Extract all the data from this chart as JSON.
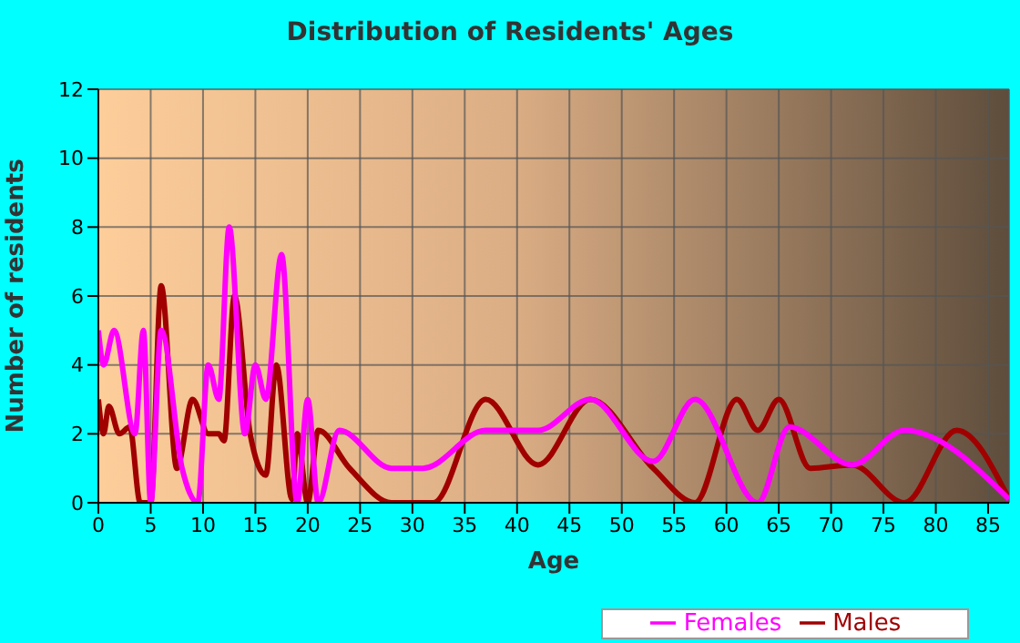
{
  "chart_data": {
    "type": "line",
    "title": "Distribution of Residents' Ages",
    "xlabel": "Age",
    "ylabel": "Number of residents",
    "xlim": [
      0,
      87
    ],
    "xticks": [
      0,
      5,
      10,
      15,
      20,
      25,
      30,
      35,
      40,
      45,
      50,
      55,
      60,
      65,
      70,
      75,
      80,
      85
    ],
    "ylim": [
      0,
      12
    ],
    "yticks": [
      0,
      2,
      4,
      6,
      8,
      10,
      12
    ],
    "grid": true,
    "legend": "bottom",
    "marker": "none",
    "line_style": "solid",
    "series": [
      {
        "name": "Males",
        "color": "#a00000",
        "x": [
          0,
          0.5,
          1,
          2,
          3,
          4,
          5,
          6,
          7.5,
          9,
          10.5,
          11.5,
          12,
          13,
          14.5,
          16,
          17,
          18.5,
          19,
          20,
          21,
          24,
          28,
          32,
          37,
          42,
          47,
          53,
          57,
          61,
          63,
          65,
          68,
          72,
          77,
          82,
          87
        ],
        "values": [
          3,
          2,
          2.8,
          2,
          2.2,
          0,
          0,
          6.3,
          1,
          3,
          2,
          2,
          1.8,
          6,
          2,
          0.8,
          4,
          0.1,
          2,
          0,
          2.1,
          1,
          0,
          0,
          3,
          1.1,
          3,
          1,
          0,
          3,
          2.1,
          3,
          1,
          1.1,
          0,
          2.1,
          0.1
        ]
      },
      {
        "name": "Females",
        "color": "#ff00ff",
        "x": [
          0,
          0.5,
          1.5,
          3.5,
          4.3,
          5,
          6,
          8,
          9.5,
          10.5,
          11.5,
          12.5,
          14,
          15,
          16,
          17.5,
          19,
          20,
          21,
          23,
          28,
          31,
          37,
          42,
          47,
          53,
          57,
          63,
          66,
          72,
          77,
          87
        ],
        "values": [
          5,
          4,
          5,
          2,
          5,
          0,
          5,
          1,
          0,
          4,
          3,
          8,
          2,
          4,
          3,
          7.2,
          0,
          3,
          0,
          2.1,
          1,
          1,
          2.1,
          2.1,
          3,
          1.2,
          3,
          0,
          2.2,
          1.1,
          2.1,
          0.1
        ]
      }
    ]
  }
}
